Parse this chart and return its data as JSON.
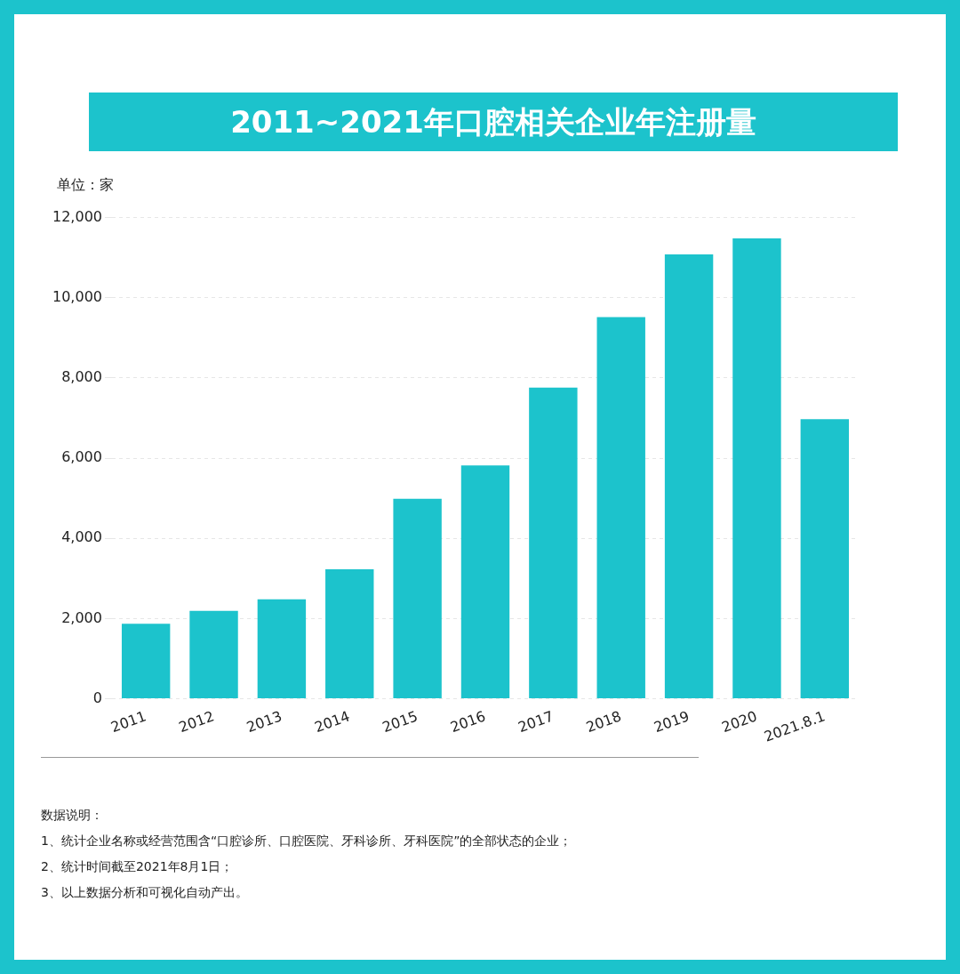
{
  "chart_data": {
    "type": "bar",
    "title": "2011~2021年口腔相关企业年注册量",
    "ylabel": "单位：家",
    "categories": [
      "2011",
      "2012",
      "2013",
      "2014",
      "2015",
      "2016",
      "2017",
      "2018",
      "2019",
      "2020",
      "2021.8.1"
    ],
    "values": [
      1870,
      2190,
      2480,
      3230,
      4990,
      5820,
      7760,
      9520,
      11080,
      11480,
      6970
    ],
    "color": "#1cc3cc",
    "ylim": [
      0,
      12000
    ],
    "yticks": [
      0,
      {
        "value": 2000,
        "label": "2,000"
      },
      {
        "value": 4000,
        "label": "4,000"
      },
      {
        "value": 6000,
        "label": "6,000"
      },
      {
        "value": 8000,
        "label": "8,000"
      },
      {
        "value": 10000,
        "label": "10,000"
      },
      {
        "value": 12000,
        "label": "12,000"
      }
    ],
    "grid": "y",
    "annotations": [
      "数据说明：",
      "1、统计企业名称或经营范围含“口腔诊所、口腔医院、牙科诊所、牙科医院”的全部状态的企业；",
      "2、统计时间截至2021年8月1日；",
      "3、以上数据分析和可视化自动产出。"
    ]
  }
}
